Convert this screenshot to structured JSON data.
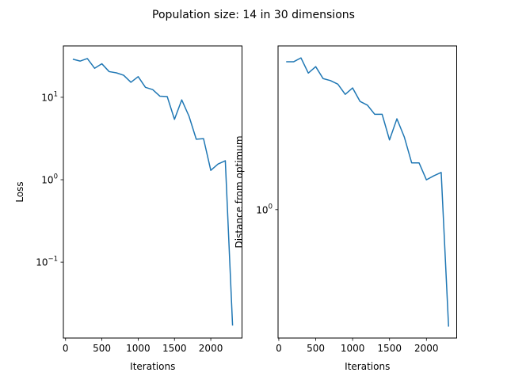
{
  "figure": {
    "suptitle": "Population size: 14 in 30 dimensions",
    "line_color": "#1f77b4"
  },
  "chart_data": [
    {
      "type": "line",
      "title": "",
      "xlabel": "Iterations",
      "ylabel": "Loss",
      "yscale": "log",
      "grid": false,
      "xlim": [
        -30,
        2430
      ],
      "ylim": [
        0.012,
        42
      ],
      "xticks": [
        0,
        500,
        1000,
        1500,
        2000
      ],
      "yticks": [
        {
          "value": 0.1,
          "base": "10",
          "exp": "−1"
        },
        {
          "value": 1,
          "base": "10",
          "exp": "0"
        },
        {
          "value": 10,
          "base": "10",
          "exp": "1"
        }
      ],
      "series": [
        {
          "x": [
            100,
            200,
            300,
            400,
            500,
            600,
            700,
            800,
            900,
            1000,
            1100,
            1200,
            1300,
            1400,
            1500,
            1600,
            1700,
            1800,
            1900,
            2000,
            2100,
            2200,
            2300
          ],
          "y": [
            29,
            27.5,
            29.5,
            22.5,
            25.5,
            20.5,
            19.8,
            18.5,
            15.2,
            17.8,
            13.2,
            12.4,
            10.3,
            10.2,
            5.4,
            9.3,
            5.9,
            3.1,
            3.15,
            1.3,
            1.55,
            1.7,
            0.017
          ]
        }
      ]
    },
    {
      "type": "line",
      "title": "",
      "xlabel": "Iterations",
      "ylabel": "Distance from optimum",
      "yscale": "log",
      "grid": false,
      "xlim": [
        -10,
        2410
      ],
      "ylim": [
        0.185,
        8.6
      ],
      "xticks": [
        0,
        500,
        1000,
        1500,
        2000
      ],
      "yticks": [
        {
          "value": 1,
          "base": "10",
          "exp": "0"
        }
      ],
      "series": [
        {
          "x": [
            100,
            200,
            300,
            400,
            500,
            600,
            700,
            800,
            900,
            1000,
            1100,
            1200,
            1300,
            1400,
            1500,
            1600,
            1700,
            1800,
            1900,
            2000,
            2100,
            2200,
            2300
          ],
          "y": [
            6.98,
            6.98,
            7.35,
            6.02,
            6.55,
            5.6,
            5.45,
            5.2,
            4.55,
            4.95,
            4.15,
            3.95,
            3.5,
            3.5,
            2.5,
            3.3,
            2.6,
            1.85,
            1.85,
            1.48,
            1.56,
            1.63,
            0.215
          ]
        }
      ]
    }
  ]
}
